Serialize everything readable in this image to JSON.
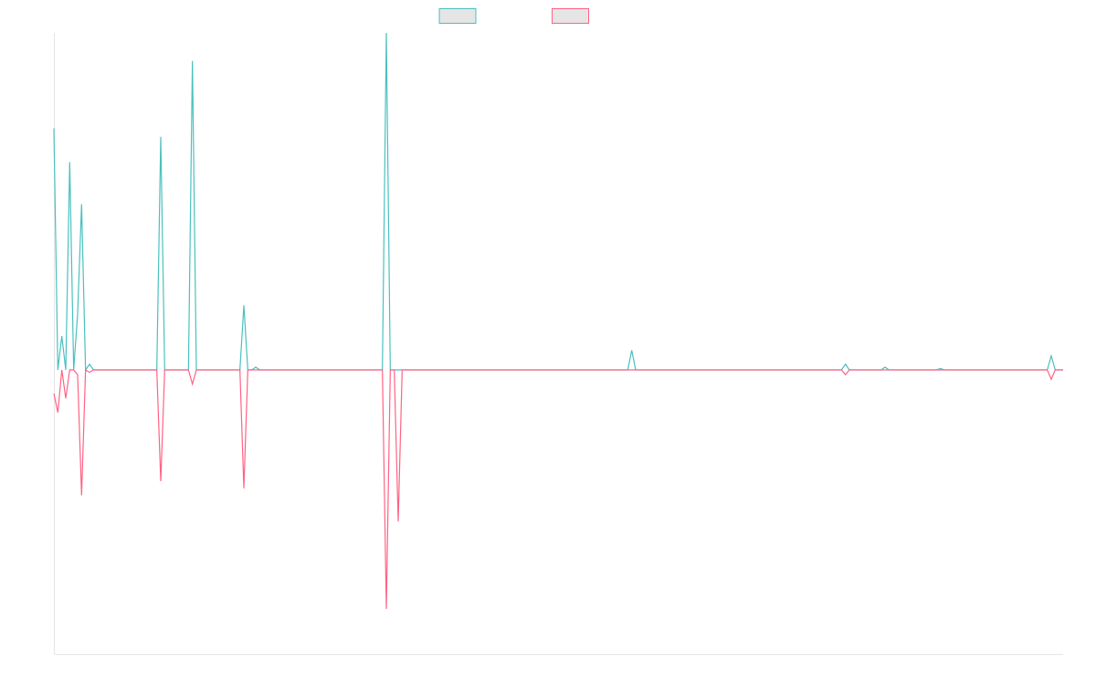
{
  "chart_data": {
    "type": "line",
    "title": "",
    "xlabel": "",
    "ylabel": "",
    "x_count": 256,
    "ylim": [
      -1.2,
      1.2
    ],
    "grid": false,
    "legend_position": "top-center",
    "series": [
      {
        "color": "#4bc0c0",
        "points": [
          [
            0,
            0.86
          ],
          [
            1,
            0.0
          ],
          [
            2,
            0.12
          ],
          [
            3,
            0.0
          ],
          [
            4,
            0.74
          ],
          [
            5,
            0.0
          ],
          [
            6,
            0.2
          ],
          [
            7,
            0.59
          ],
          [
            8,
            0.0
          ],
          [
            9,
            0.02
          ],
          [
            10,
            0.0
          ],
          [
            26,
            0.0
          ],
          [
            27,
            0.83
          ],
          [
            28,
            0.0
          ],
          [
            29,
            0.0
          ],
          [
            34,
            0.0
          ],
          [
            35,
            1.1
          ],
          [
            36,
            0.0
          ],
          [
            47,
            0.0
          ],
          [
            48,
            0.23
          ],
          [
            49,
            0.0
          ],
          [
            50,
            0.0
          ],
          [
            51,
            0.01
          ],
          [
            52,
            0.0
          ],
          [
            83,
            0.0
          ],
          [
            84,
            1.2
          ],
          [
            85,
            0.0
          ],
          [
            145,
            0.0
          ],
          [
            146,
            0.07
          ],
          [
            147,
            0.0
          ],
          [
            199,
            0.0
          ],
          [
            200,
            0.02
          ],
          [
            201,
            0.0
          ],
          [
            209,
            0.0
          ],
          [
            210,
            0.01
          ],
          [
            211,
            0.0
          ],
          [
            223,
            0.0
          ],
          [
            224,
            0.005
          ],
          [
            225,
            0.0
          ],
          [
            251,
            0.0
          ],
          [
            252,
            0.05
          ],
          [
            253,
            0.0
          ],
          [
            254,
            0.0
          ],
          [
            255,
            0.0
          ]
        ]
      },
      {
        "color": "#ff6384",
        "points": [
          [
            0,
            -0.1
          ],
          [
            1,
            -0.18
          ],
          [
            2,
            0.0
          ],
          [
            3,
            -0.12
          ],
          [
            4,
            0.0
          ],
          [
            5,
            0.0
          ],
          [
            6,
            -0.02
          ],
          [
            7,
            -0.53
          ],
          [
            8,
            0.0
          ],
          [
            9,
            -0.01
          ],
          [
            10,
            0.0
          ],
          [
            26,
            0.0
          ],
          [
            27,
            -0.47
          ],
          [
            28,
            0.0
          ],
          [
            29,
            0.0
          ],
          [
            34,
            0.0
          ],
          [
            35,
            -0.06
          ],
          [
            36,
            0.0
          ],
          [
            47,
            0.0
          ],
          [
            48,
            -0.5
          ],
          [
            49,
            0.0
          ],
          [
            50,
            0.0
          ],
          [
            51,
            0.0
          ],
          [
            52,
            0.0
          ],
          [
            83,
            0.0
          ],
          [
            84,
            -1.01
          ],
          [
            85,
            0.0
          ],
          [
            86,
            0.0
          ],
          [
            87,
            -0.64
          ],
          [
            88,
            0.0
          ],
          [
            199,
            0.0
          ],
          [
            200,
            -0.02
          ],
          [
            201,
            0.0
          ],
          [
            251,
            0.0
          ],
          [
            252,
            -0.04
          ],
          [
            253,
            0.0
          ],
          [
            254,
            0.0
          ],
          [
            255,
            0.0
          ]
        ]
      }
    ]
  }
}
